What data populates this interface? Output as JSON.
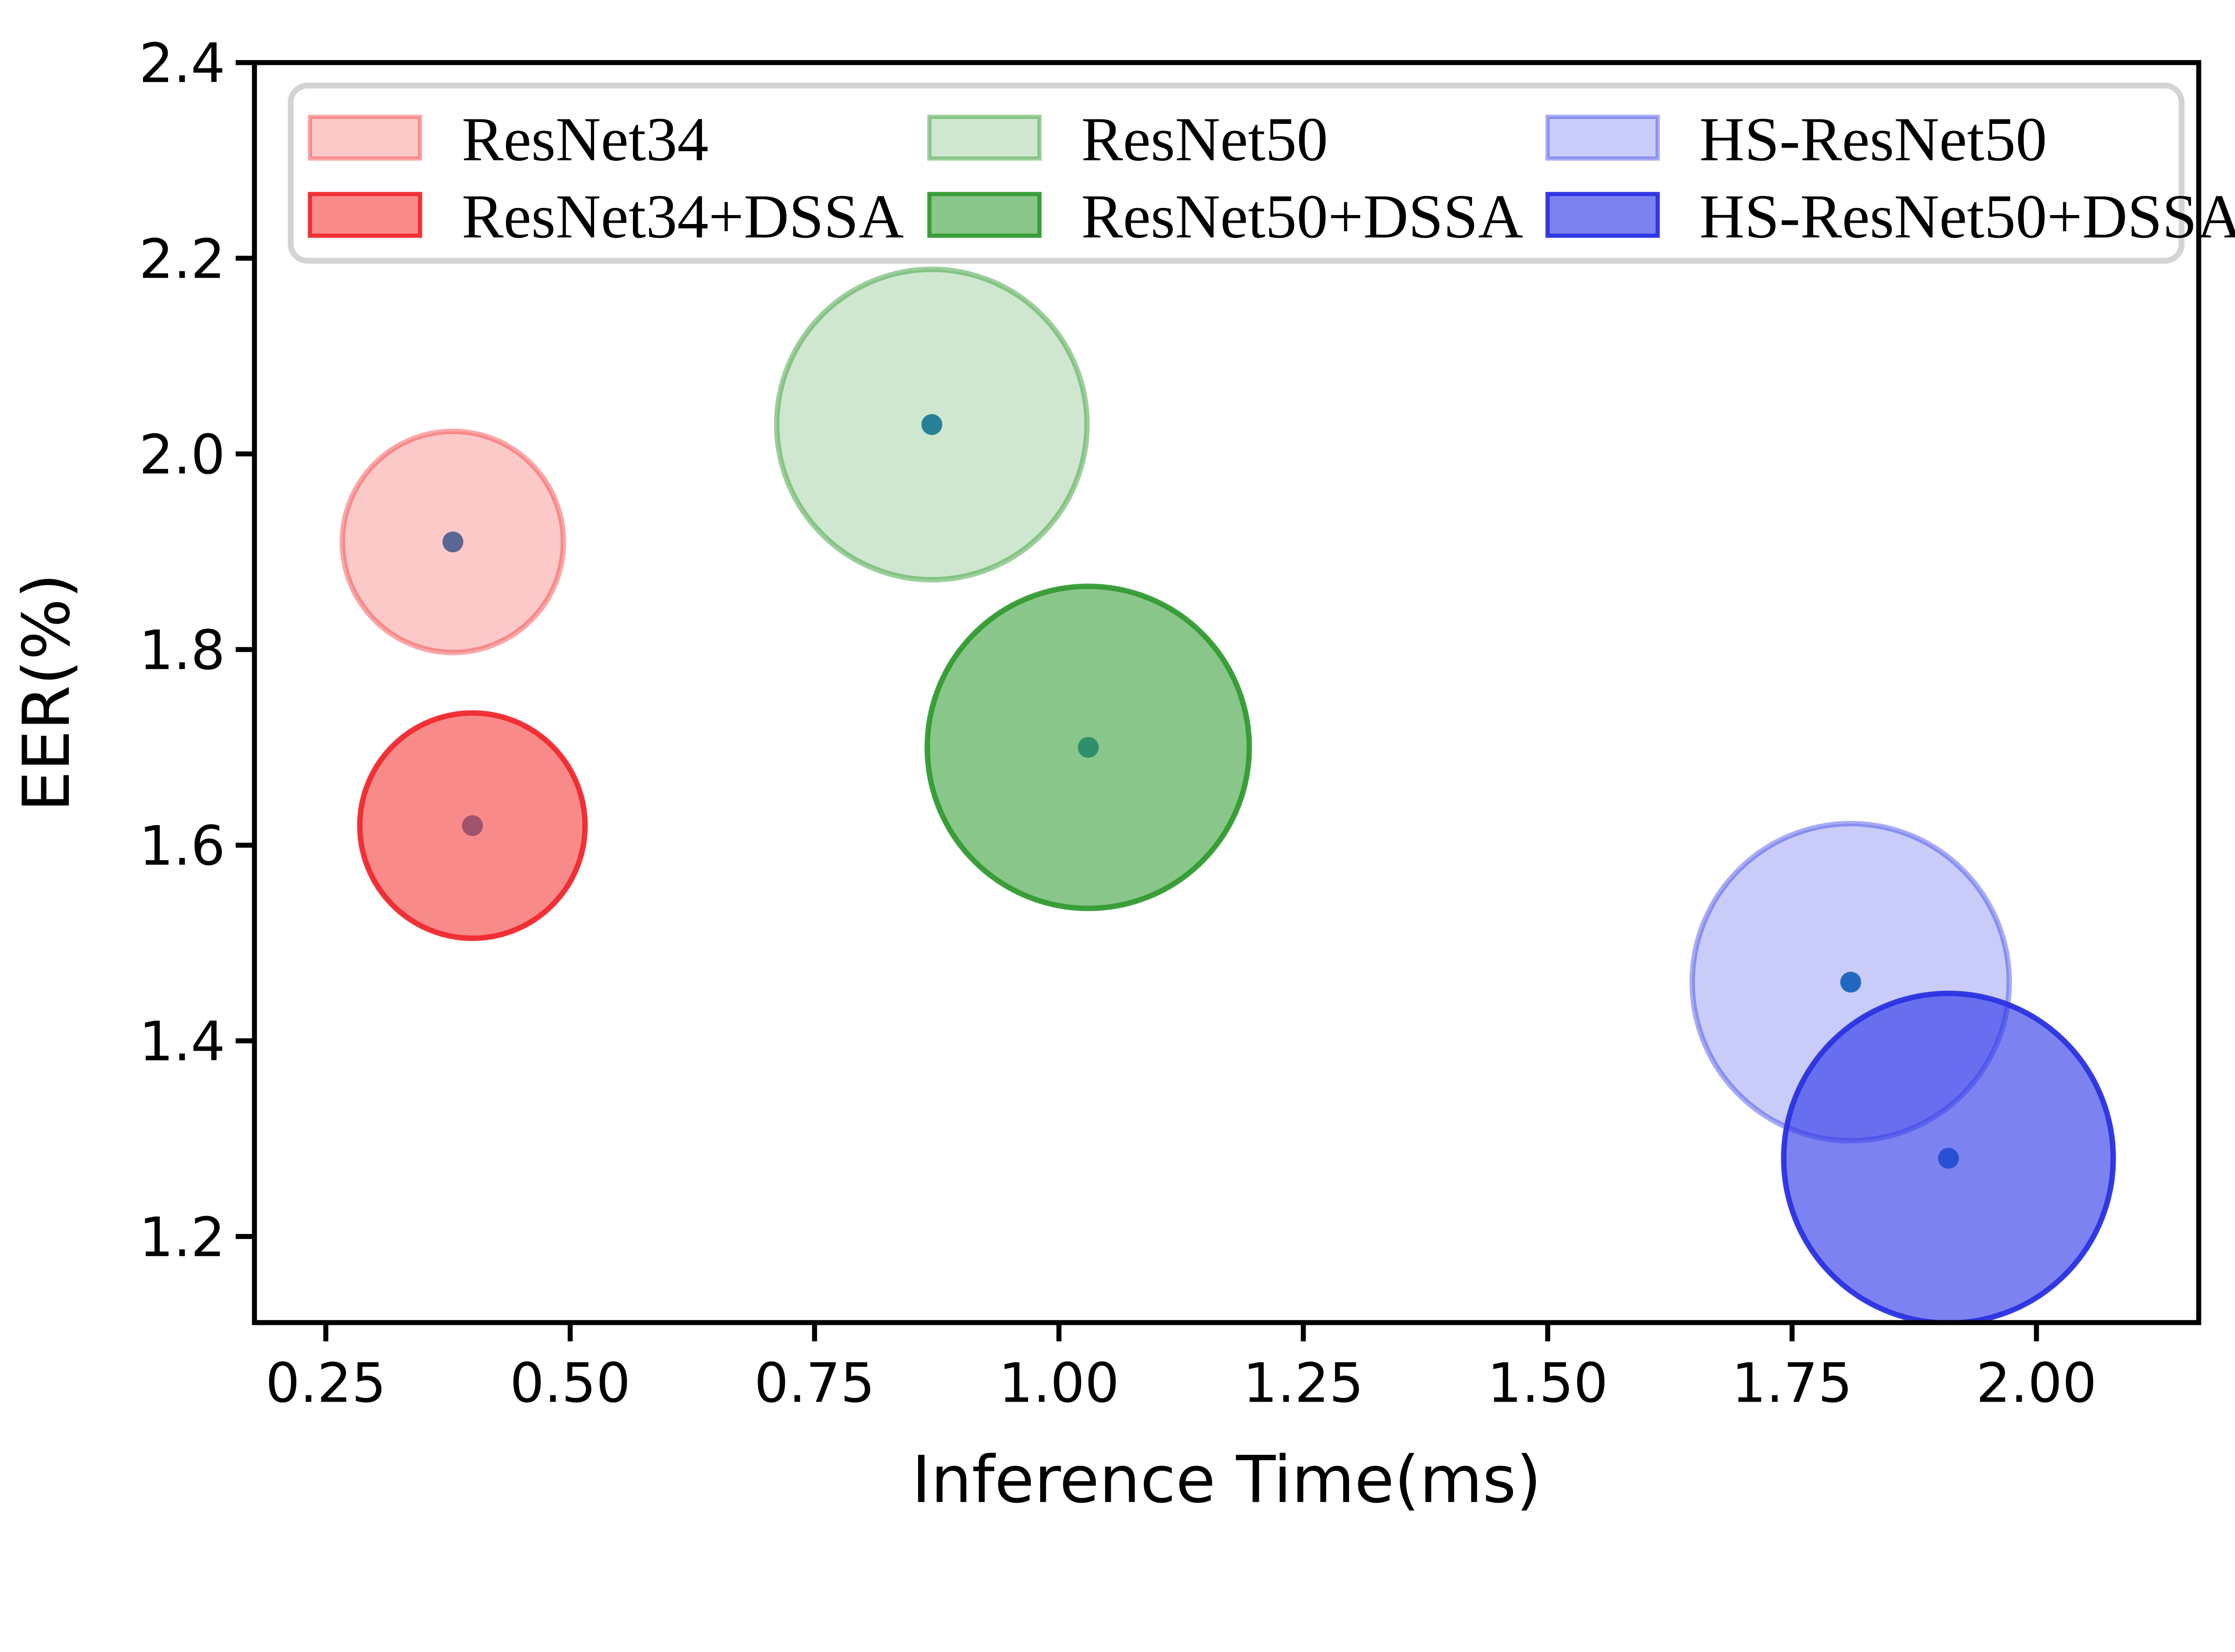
{
  "chart_data": {
    "type": "scatter",
    "title": "",
    "xlabel": "Inference Time(ms)",
    "ylabel": "EER(%)",
    "xlim": [
      0.177,
      2.166
    ],
    "ylim": [
      1.112,
      2.4
    ],
    "grid": false,
    "background_color": "#ffffff",
    "axis_color": "#000000",
    "x_ticks": [
      {
        "value": 0.25,
        "label": "0.25"
      },
      {
        "value": 0.5,
        "label": "0.50"
      },
      {
        "value": 0.75,
        "label": "0.75"
      },
      {
        "value": 1.0,
        "label": "1.00"
      },
      {
        "value": 1.25,
        "label": "1.25"
      },
      {
        "value": 1.5,
        "label": "1.50"
      },
      {
        "value": 1.75,
        "label": "1.75"
      },
      {
        "value": 2.0,
        "label": "2.00"
      }
    ],
    "y_ticks": [
      {
        "value": 1.2,
        "label": "1.2"
      },
      {
        "value": 1.4,
        "label": "1.4"
      },
      {
        "value": 1.6,
        "label": "1.6"
      },
      {
        "value": 1.8,
        "label": "1.8"
      },
      {
        "value": 2.0,
        "label": "2.0"
      },
      {
        "value": 2.2,
        "label": "2.2"
      },
      {
        "value": 2.4,
        "label": "2.4"
      }
    ],
    "center_dot_color": "#1f77b4",
    "center_dot_radius_px": 25,
    "series": [
      {
        "name": "ResNet34",
        "x": 0.38,
        "y": 1.91,
        "bubble_radius_px": 265,
        "fill": "rgba(245,60,60,0.28)",
        "edge": "rgba(245,60,60,0.45)"
      },
      {
        "name": "ResNet34+DSSA",
        "x": 0.4,
        "y": 1.62,
        "bubble_radius_px": 270,
        "fill": "rgba(245,60,60,0.60)",
        "edge": "rgba(240,40,45,0.95)"
      },
      {
        "name": "ResNet50",
        "x": 0.87,
        "y": 2.03,
        "bubble_radius_px": 372,
        "fill": "rgba(58,160,58,0.25)",
        "edge": "rgba(58,160,58,0.50)"
      },
      {
        "name": "ResNet50+DSSA",
        "x": 1.03,
        "y": 1.7,
        "bubble_radius_px": 386,
        "fill": "rgba(58,160,58,0.60)",
        "edge": "rgba(50,155,50,0.95)"
      },
      {
        "name": "HS-ResNet50",
        "x": 1.81,
        "y": 1.46,
        "bubble_radius_px": 380,
        "fill": "rgba(48,57,232,0.26)",
        "edge": "rgba(48,57,232,0.42)"
      },
      {
        "name": "HS-ResNet50+DSSA",
        "x": 1.91,
        "y": 1.28,
        "bubble_radius_px": 395,
        "fill": "rgba(48,57,232,0.63)",
        "edge": "rgba(42,48,226,0.95)"
      }
    ],
    "legend": {
      "columns": 2,
      "rows_per_column": 2,
      "position": "top-inside",
      "border_color": "#d4d4d4",
      "background_color": "#ffffff",
      "entries": [
        "ResNet34",
        "ResNet34+DSSA",
        "ResNet50",
        "ResNet50+DSSA",
        "HS-ResNet50",
        "HS-ResNet50+DSSA"
      ]
    }
  }
}
